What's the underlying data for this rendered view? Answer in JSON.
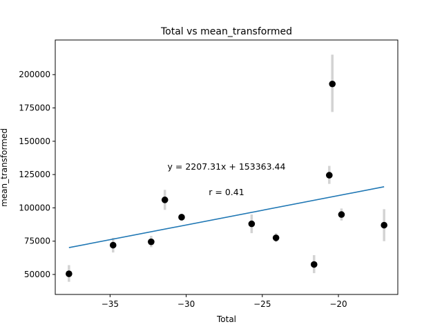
{
  "chart_data": {
    "type": "scatter",
    "title": "Total vs mean_transformed",
    "xlabel": "Total",
    "ylabel": "mean_transformed",
    "xlim": [
      -38.6,
      -16.1
    ],
    "ylim": [
      35000,
      226000
    ],
    "xticks": [
      -35,
      -30,
      -25,
      -20
    ],
    "xtick_labels": [
      "−35",
      "−30",
      "−25",
      "−20"
    ],
    "yticks": [
      50000,
      75000,
      100000,
      125000,
      150000,
      175000,
      200000
    ],
    "ytick_labels": [
      "50000",
      "75000",
      "100000",
      "125000",
      "150000",
      "175000",
      "200000"
    ],
    "grid": false,
    "points": [
      {
        "x": -37.7,
        "y": 50500,
        "err_low": 44500,
        "err_high": 57000
      },
      {
        "x": -34.8,
        "y": 72000,
        "err_low": 66500,
        "err_high": 77500
      },
      {
        "x": -32.3,
        "y": 74500,
        "err_low": 70500,
        "err_high": 79000
      },
      {
        "x": -31.4,
        "y": 106000,
        "err_low": 98500,
        "err_high": 113500
      },
      {
        "x": -30.3,
        "y": 93000,
        "err_low": 90500,
        "err_high": 95500
      },
      {
        "x": -25.7,
        "y": 88000,
        "err_low": 81000,
        "err_high": 95000
      },
      {
        "x": -24.1,
        "y": 77500,
        "err_low": 74500,
        "err_high": 81000
      },
      {
        "x": -21.6,
        "y": 57500,
        "err_low": 51000,
        "err_high": 64500
      },
      {
        "x": -20.6,
        "y": 124500,
        "err_low": 118000,
        "err_high": 131500
      },
      {
        "x": -20.4,
        "y": 193000,
        "err_low": 172000,
        "err_high": 215000
      },
      {
        "x": -19.8,
        "y": 95000,
        "err_low": 90500,
        "err_high": 99500
      },
      {
        "x": -17.0,
        "y": 87000,
        "err_low": 75000,
        "err_high": 99000
      }
    ],
    "fit_line": {
      "slope": 2207.31,
      "intercept": 153363.44,
      "x_start": -37.7,
      "x_end": -17.0
    },
    "annotations": {
      "equation": "y = 2207.31x + 153363.44",
      "r_value": "r = 0.41"
    },
    "colors": {
      "points": "#000000",
      "error_bars": "#d3d3d3",
      "fit_line": "#1f77b4"
    }
  }
}
